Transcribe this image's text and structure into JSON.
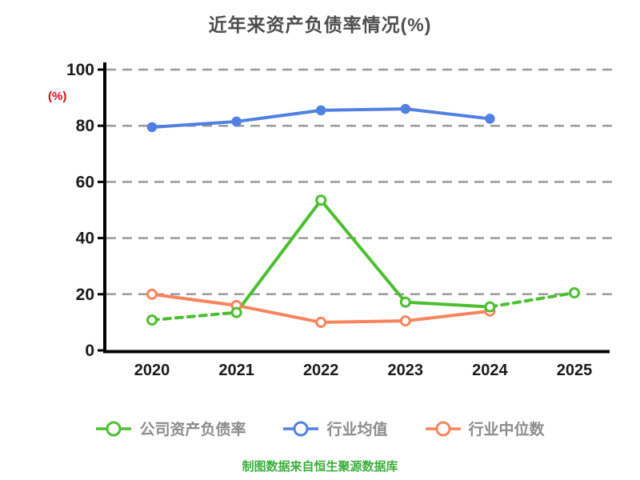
{
  "chart_data": {
    "type": "line",
    "title": "近年来资产负债率情况(%)",
    "ylabel": "(%)",
    "xlabel": "",
    "categories": [
      "2020",
      "2021",
      "2022",
      "2023",
      "2024",
      "2025"
    ],
    "series": [
      {
        "name": "公司资产负债率",
        "color": "#4bbf2f",
        "marker": "donut",
        "values": [
          10.8,
          13.5,
          53.5,
          17.2,
          15.5,
          20.5
        ],
        "dashed_segments": [
          0,
          4
        ]
      },
      {
        "name": "行业均值",
        "color": "#5080e1",
        "marker": "solid",
        "values": [
          79.5,
          81.5,
          85.5,
          86.0,
          82.5,
          null
        ],
        "dashed_segments": []
      },
      {
        "name": "行业中位数",
        "color": "#f8845e",
        "marker": "donut",
        "values": [
          20.0,
          16.0,
          10.0,
          10.5,
          14.0,
          null
        ],
        "dashed_segments": []
      }
    ],
    "ylim": [
      0,
      100
    ],
    "yticks": [
      0,
      20,
      40,
      60,
      80,
      100
    ],
    "grid": "horizontal-dashed",
    "legend_position": "bottom",
    "footnote": "制图数据来自恒生聚源数据库"
  },
  "colors": {
    "title_text": "#4d4d4d",
    "axis": "#000000",
    "gridline": "#9a9a9a",
    "tick_text": "#1a1a1a",
    "ylabel_text": "#e60012",
    "legend_text": "#8c8c8c",
    "footnote_text": "#3bae3b"
  }
}
